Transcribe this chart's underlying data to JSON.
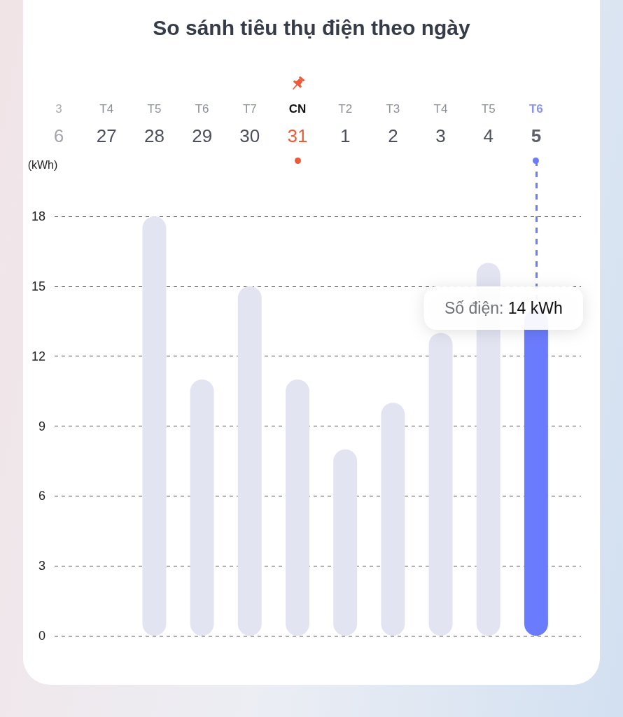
{
  "chart_data": {
    "type": "bar",
    "title": "So sánh tiêu thụ điện theo ngày",
    "ylabel": "(kWh)",
    "categories": [
      "3\n6",
      "T4\n27",
      "T5\n28",
      "T6\n29",
      "T7\n30",
      "CN\n31",
      "T2\n1",
      "T3\n2",
      "T4\n3",
      "T5\n4",
      "T6\n5"
    ],
    "values": [
      null,
      null,
      18,
      11,
      15,
      11,
      8,
      10,
      13,
      16,
      14
    ],
    "colors": [
      "#e3e4f2",
      "#e3e4f2",
      "#e3e4f2",
      "#e3e4f2",
      "#e3e4f2",
      "#e3e4f2",
      "#e3e4f2",
      "#e3e4f2",
      "#e3e4f2",
      "#e3e4f2",
      "#6b7bfd"
    ],
    "ylim": [
      0,
      18
    ],
    "yticks": [
      0,
      3,
      6,
      9,
      12,
      15,
      18
    ],
    "grid": "y",
    "ref_lines": [
      {
        "axis": "x",
        "value": "T6\n5",
        "color": "#6b7bfd",
        "line_style": "dashed"
      }
    ],
    "annotations": [
      {
        "text": "Số điện: 14 kWh",
        "x": "T6\n5",
        "y": 14
      }
    ]
  }
}
